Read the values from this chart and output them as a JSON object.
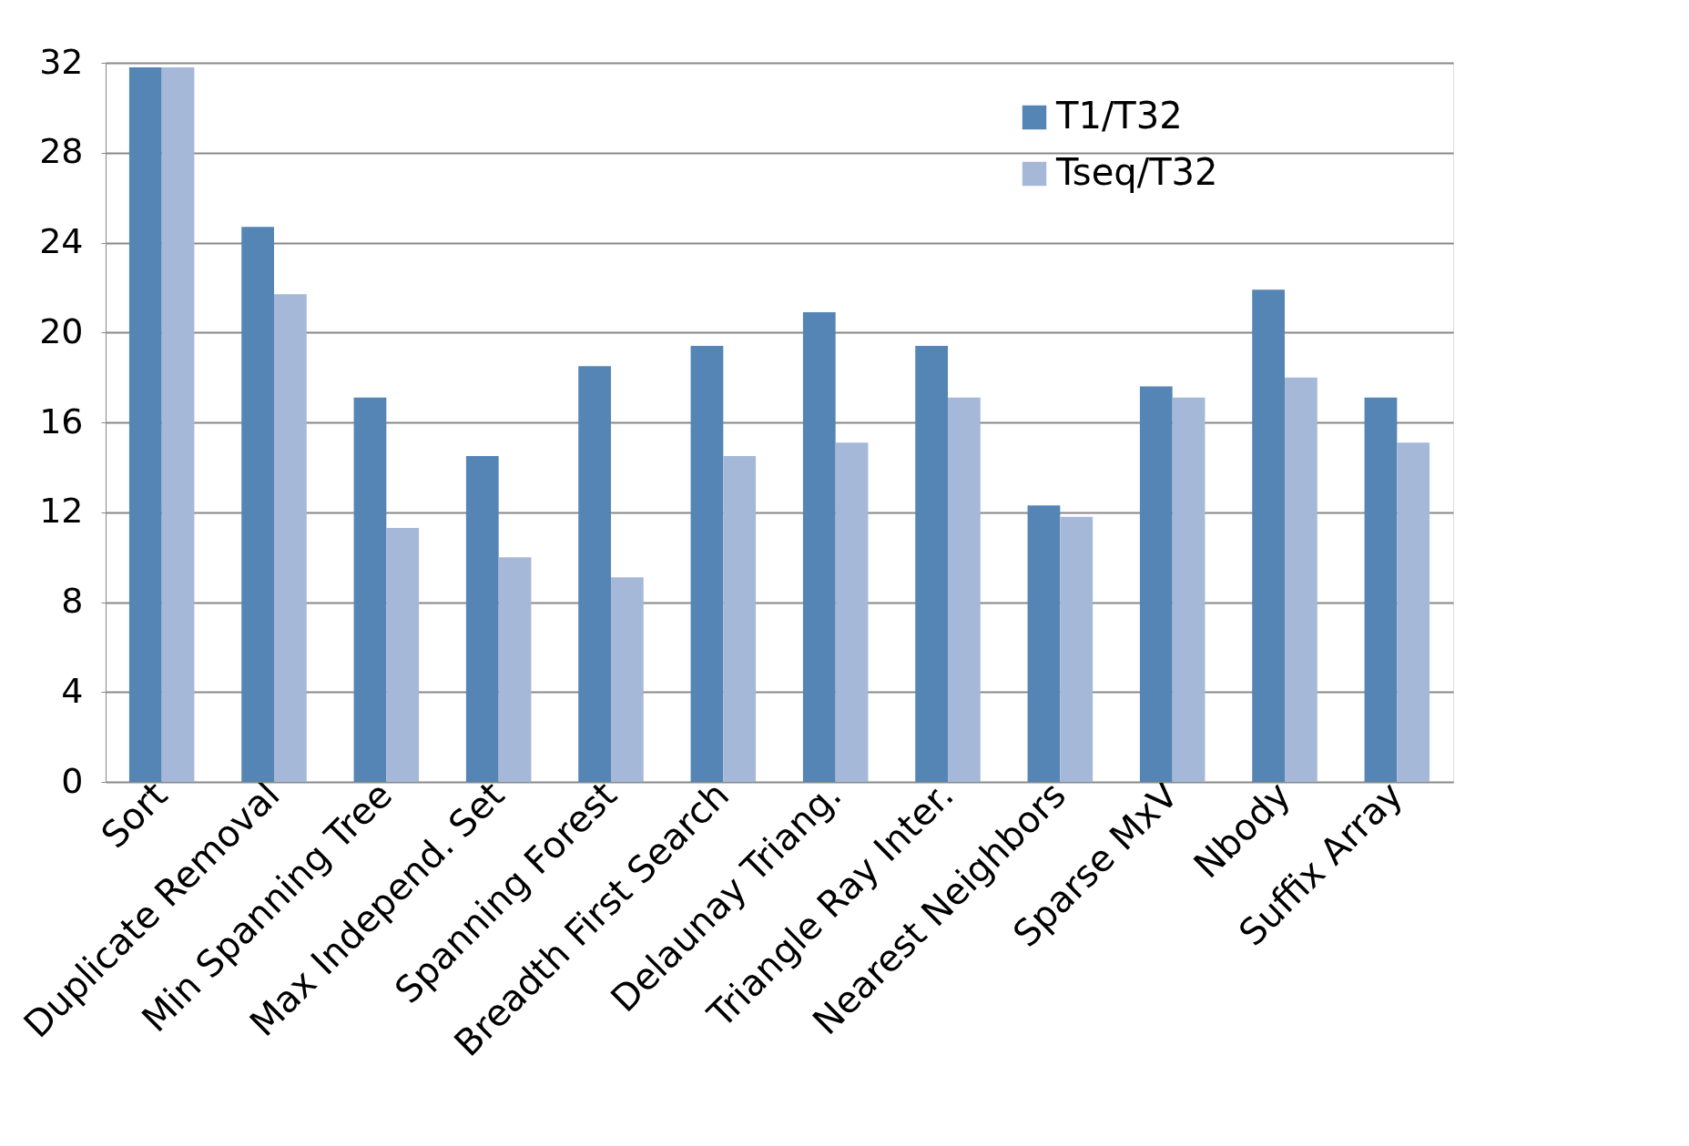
{
  "chart_data": {
    "type": "bar",
    "categories": [
      "Sort",
      "Duplicate Removal",
      "Min Spanning Tree",
      "Max Independ. Set",
      "Spanning Forest",
      "Breadth First Search",
      "Delaunay Triang.",
      "Triangle Ray Inter.",
      "Nearest Neighbors",
      "Sparse MxV",
      "Nbody",
      "Suffix Array"
    ],
    "series": [
      {
        "name": "T1/T32",
        "color": "#5585b5",
        "values": [
          31.8,
          24.7,
          17.1,
          14.5,
          18.5,
          19.4,
          20.9,
          19.4,
          12.3,
          17.6,
          21.9,
          17.1
        ]
      },
      {
        "name": "Tseq/T32",
        "color": "#a5b8d8",
        "values": [
          31.8,
          21.7,
          11.3,
          10.0,
          9.1,
          14.5,
          15.1,
          17.1,
          11.8,
          17.1,
          18.0,
          15.1
        ]
      }
    ],
    "ylim": [
      0,
      32
    ],
    "yticks": [
      0,
      4,
      8,
      12,
      16,
      20,
      24,
      28,
      32
    ],
    "grid": "y",
    "legend": "top right"
  }
}
